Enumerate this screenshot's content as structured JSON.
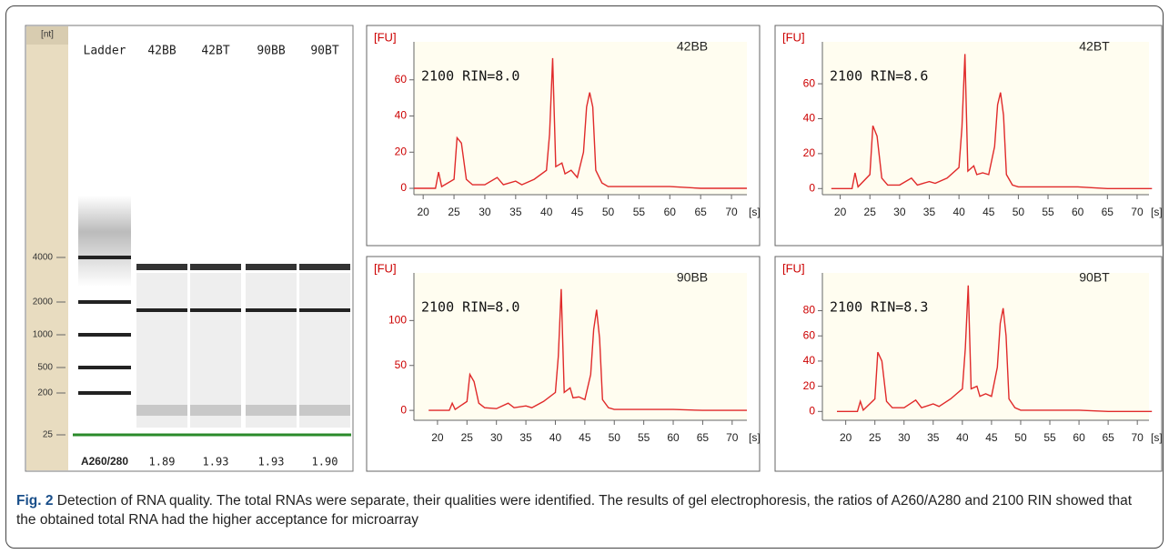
{
  "gel": {
    "unit": "[nt]",
    "lanes": [
      "Ladder",
      "42BB",
      "42BT",
      "90BB",
      "90BT"
    ],
    "sizes": [
      4000,
      2000,
      1000,
      500,
      200,
      25
    ],
    "ratio_label": "A260/280",
    "ratios": [
      "1.89",
      "1.93",
      "1.93",
      "1.90"
    ]
  },
  "chart_data": [
    {
      "type": "line",
      "title": "42BB",
      "annotation": "2100 RIN=8.0",
      "ylabel": "[FU]",
      "xlabel": "[s]",
      "color": "#e02a2a",
      "x": [
        18.5,
        20,
        22,
        22.5,
        23,
        25,
        25.5,
        26.2,
        27,
        28,
        30,
        32,
        33,
        35,
        36,
        38,
        40,
        40.5,
        41,
        41.5,
        42.5,
        43,
        44,
        45,
        46,
        46.5,
        47,
        47.5,
        48,
        49,
        50,
        55,
        60,
        65,
        70,
        72.5
      ],
      "values": [
        0,
        0,
        0,
        9,
        1,
        5,
        28,
        25,
        5,
        2,
        2,
        6,
        2,
        4,
        2,
        5,
        10,
        30,
        72,
        12,
        14,
        8,
        10,
        6,
        20,
        45,
        53,
        45,
        10,
        3,
        1,
        1,
        1,
        0,
        0,
        0
      ],
      "xlim": [
        18.5,
        72.5
      ],
      "ylim": [
        -3.5,
        81
      ],
      "xticks": [
        20,
        25,
        30,
        35,
        40,
        45,
        50,
        55,
        60,
        65,
        70
      ],
      "yticks": [
        0,
        20,
        40,
        60
      ]
    },
    {
      "type": "line",
      "title": "42BT",
      "annotation": "2100 RIN=8.6",
      "ylabel": "[FU]",
      "xlabel": "[s]",
      "color": "#e02a2a",
      "x": [
        18.5,
        20,
        22,
        22.5,
        23,
        25,
        25.5,
        26.2,
        27,
        28,
        30,
        32,
        33,
        35,
        36,
        38,
        40,
        40.5,
        41,
        41.5,
        42.5,
        43,
        44,
        45,
        46,
        46.5,
        47,
        47.5,
        48,
        49,
        50,
        55,
        60,
        65,
        70,
        72.5
      ],
      "values": [
        0,
        0,
        0,
        9,
        1,
        8,
        36,
        30,
        6,
        2,
        2,
        6,
        2,
        4,
        3,
        6,
        12,
        35,
        77,
        10,
        13,
        8,
        9,
        8,
        24,
        48,
        55,
        42,
        8,
        2,
        1,
        1,
        1,
        0,
        0,
        0
      ],
      "xlim": [
        17,
        72
      ],
      "ylim": [
        -3.5,
        84
      ],
      "xticks": [
        20,
        25,
        30,
        35,
        40,
        45,
        50,
        55,
        60,
        65,
        70
      ],
      "yticks": [
        0,
        20,
        40,
        60
      ]
    },
    {
      "type": "line",
      "title": "90BB",
      "annotation": "2100 RIN=8.0",
      "ylabel": "[FU]",
      "xlabel": "[s]",
      "color": "#e02a2a",
      "x": [
        18.5,
        20,
        22,
        22.5,
        23,
        25,
        25.5,
        26.2,
        27,
        28,
        30,
        32,
        33,
        35,
        36,
        38,
        40,
        40.5,
        41,
        41.5,
        42.5,
        43,
        44,
        45,
        46,
        46.5,
        47,
        47.5,
        48,
        49,
        50,
        55,
        60,
        65,
        70,
        72.5
      ],
      "values": [
        0,
        0,
        0,
        8,
        1,
        10,
        40,
        32,
        8,
        3,
        2,
        8,
        3,
        5,
        3,
        10,
        20,
        60,
        135,
        20,
        25,
        14,
        15,
        12,
        40,
        90,
        112,
        80,
        12,
        3,
        1,
        1,
        1,
        0,
        0,
        0
      ],
      "xlim": [
        16,
        72.5
      ],
      "ylim": [
        -11,
        153
      ],
      "xticks": [
        20,
        25,
        30,
        35,
        40,
        45,
        50,
        55,
        60,
        65,
        70
      ],
      "yticks": [
        0,
        50,
        100
      ]
    },
    {
      "type": "line",
      "title": "90BT",
      "annotation": "2100 RIN=8.3",
      "ylabel": "[FU]",
      "xlabel": "[s]",
      "color": "#e02a2a",
      "x": [
        18.5,
        20,
        22,
        22.5,
        23,
        25,
        25.5,
        26.2,
        27,
        28,
        30,
        32,
        33,
        35,
        36,
        38,
        40,
        40.5,
        41,
        41.5,
        42.5,
        43,
        44,
        45,
        46,
        46.5,
        47,
        47.5,
        48,
        49,
        50,
        55,
        60,
        65,
        70,
        72.5
      ],
      "values": [
        0,
        0,
        0,
        8,
        1,
        10,
        47,
        40,
        8,
        3,
        3,
        9,
        3,
        6,
        4,
        10,
        18,
        50,
        100,
        18,
        20,
        12,
        14,
        12,
        35,
        70,
        82,
        60,
        10,
        3,
        1,
        1,
        1,
        0,
        0,
        0
      ],
      "xlim": [
        16,
        72
      ],
      "ylim": [
        -7,
        110
      ],
      "xticks": [
        20,
        25,
        30,
        35,
        40,
        45,
        50,
        55,
        60,
        65,
        70
      ],
      "yticks": [
        0,
        20,
        40,
        60,
        80
      ]
    }
  ],
  "caption": {
    "label": "Fig. 2",
    "text": "Detection of RNA quality. The total RNAs were separate, their qualities were identified. The results of gel electrophoresis, the ratios of A260/A280 and 2100 RIN showed that the obtained total RNA had the higher acceptance for microarray"
  }
}
